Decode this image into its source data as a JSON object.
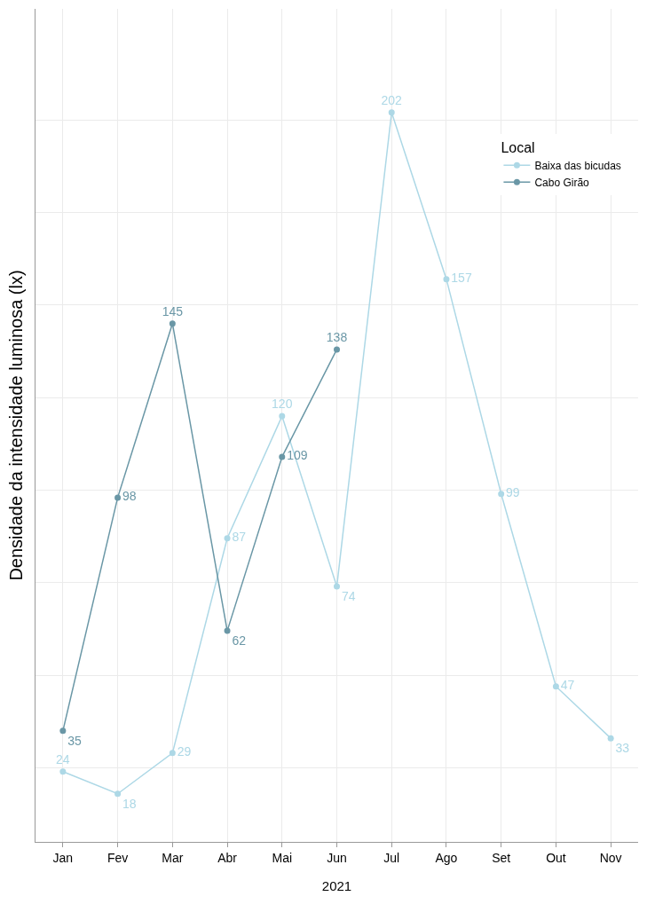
{
  "chart_data": {
    "type": "line",
    "xlabel": "2021",
    "ylabel": "Densidade da intensidade luminosa (lx)",
    "legend_title": "Local",
    "legend": "top right",
    "grid": true,
    "marker": "circle",
    "data_labels": true,
    "categories": [
      "Jan",
      "Fev",
      "Mar",
      "Abr",
      "Mai",
      "Jun",
      "Jul",
      "Ago",
      "Set",
      "Out",
      "Nov"
    ],
    "ylim": [
      5,
      230
    ],
    "yticks": [
      {
        "value": 25,
        "label": null
      },
      {
        "value": 50,
        "label": null
      },
      {
        "value": 75,
        "label": null
      },
      {
        "value": 100,
        "label": null
      },
      {
        "value": 125,
        "label": null
      },
      {
        "value": 150,
        "label": null
      },
      {
        "value": 175,
        "label": null
      },
      {
        "value": 200,
        "label": null
      }
    ],
    "series": [
      {
        "name": "Baixa das bicudas",
        "color": "#add8e6",
        "values": [
          24,
          18,
          29,
          87,
          120,
          74,
          202,
          157,
          99,
          47,
          33
        ]
      },
      {
        "name": "Cabo Girão",
        "color": "#6a97a6",
        "values": [
          35,
          98,
          145,
          62,
          109,
          138,
          null,
          null,
          null,
          null,
          null
        ]
      }
    ]
  }
}
